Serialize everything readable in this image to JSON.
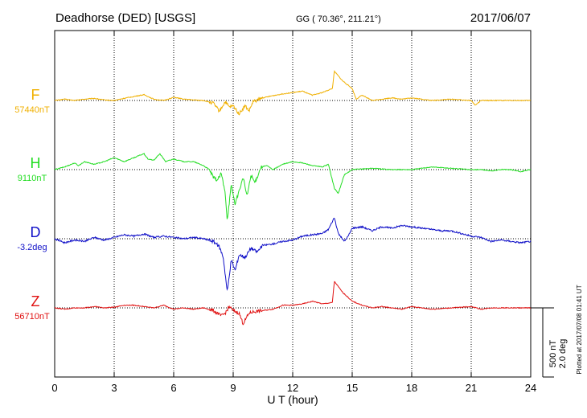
{
  "header": {
    "station": "Deadhorse (DED)  [USGS]",
    "coords": "GG ( 70.36°, 211.21°)",
    "date": "2017/06/07"
  },
  "plotted_note": "Plotted at 2017/07/08 01:41  UT",
  "scale_labels": [
    "500 nT",
    "2.0 deg"
  ],
  "colors": {
    "F": "#f0b000",
    "H": "#22dd22",
    "D": "#1010c8",
    "Z": "#e01010"
  },
  "chart_data": {
    "type": "line",
    "xlabel": "U T (hour)",
    "xlim": [
      0,
      24
    ],
    "xticks": [
      0,
      3,
      6,
      9,
      12,
      15,
      18,
      21,
      24
    ],
    "grid": true,
    "series": [
      {
        "name": "F",
        "baseline_label": "57440nT",
        "points": [
          [
            0,
            0
          ],
          [
            0.5,
            5
          ],
          [
            1,
            0
          ],
          [
            1.5,
            5
          ],
          [
            2,
            8
          ],
          [
            2.5,
            2
          ],
          [
            3,
            0
          ],
          [
            3.5,
            8
          ],
          [
            4,
            15
          ],
          [
            4.5,
            22
          ],
          [
            5,
            5
          ],
          [
            5.5,
            0
          ],
          [
            6,
            12
          ],
          [
            6.5,
            5
          ],
          [
            7,
            2
          ],
          [
            7.5,
            0
          ],
          [
            8,
            -10
          ],
          [
            8.3,
            -40
          ],
          [
            8.6,
            -5
          ],
          [
            8.8,
            -25
          ],
          [
            9,
            -20
          ],
          [
            9.3,
            -50
          ],
          [
            9.6,
            -20
          ],
          [
            9.8,
            -40
          ],
          [
            10,
            -5
          ],
          [
            10.5,
            10
          ],
          [
            11,
            18
          ],
          [
            11.5,
            25
          ],
          [
            12,
            30
          ],
          [
            12.5,
            35
          ],
          [
            12.8,
            25
          ],
          [
            13,
            20
          ],
          [
            13.5,
            30
          ],
          [
            14,
            45
          ],
          [
            14.1,
            110
          ],
          [
            14.5,
            75
          ],
          [
            15,
            45
          ],
          [
            15.2,
            5
          ],
          [
            15.5,
            20
          ],
          [
            16,
            0
          ],
          [
            16.5,
            5
          ],
          [
            17,
            10
          ],
          [
            17.5,
            5
          ],
          [
            18,
            10
          ],
          [
            18.5,
            5
          ],
          [
            19,
            0
          ],
          [
            20,
            5
          ],
          [
            21,
            0
          ],
          [
            21.2,
            -18
          ],
          [
            21.5,
            0
          ],
          [
            22,
            0
          ],
          [
            23,
            0
          ],
          [
            24,
            0
          ]
        ]
      },
      {
        "name": "H",
        "baseline_label": "9110nT",
        "points": [
          [
            0,
            0
          ],
          [
            0.5,
            10
          ],
          [
            1,
            25
          ],
          [
            1.2,
            15
          ],
          [
            1.5,
            30
          ],
          [
            2,
            20
          ],
          [
            2.5,
            30
          ],
          [
            3,
            45
          ],
          [
            3.5,
            30
          ],
          [
            4,
            45
          ],
          [
            4.5,
            60
          ],
          [
            4.7,
            40
          ],
          [
            5,
            35
          ],
          [
            5.3,
            60
          ],
          [
            5.6,
            30
          ],
          [
            6,
            40
          ],
          [
            6.5,
            30
          ],
          [
            7,
            30
          ],
          [
            7.5,
            15
          ],
          [
            7.8,
            0
          ],
          [
            8,
            -30
          ],
          [
            8.2,
            -40
          ],
          [
            8.4,
            -15
          ],
          [
            8.6,
            -90
          ],
          [
            8.7,
            -190
          ],
          [
            8.9,
            -60
          ],
          [
            9.1,
            -130
          ],
          [
            9.3,
            -80
          ],
          [
            9.5,
            -30
          ],
          [
            9.7,
            -100
          ],
          [
            9.9,
            -20
          ],
          [
            10.1,
            -50
          ],
          [
            10.4,
            10
          ],
          [
            10.7,
            15
          ],
          [
            11,
            0
          ],
          [
            11.5,
            20
          ],
          [
            12,
            30
          ],
          [
            12.5,
            25
          ],
          [
            13,
            15
          ],
          [
            13.5,
            10
          ],
          [
            13.8,
            20
          ],
          [
            14.1,
            -70
          ],
          [
            14.3,
            -90
          ],
          [
            14.6,
            -20
          ],
          [
            15,
            0
          ],
          [
            16,
            5
          ],
          [
            17,
            0
          ],
          [
            18,
            0
          ],
          [
            19,
            10
          ],
          [
            20,
            5
          ],
          [
            21,
            0
          ],
          [
            21.5,
            0
          ],
          [
            22,
            -5
          ],
          [
            22.5,
            0
          ],
          [
            23,
            0
          ],
          [
            23.5,
            -8
          ],
          [
            24,
            0
          ]
        ]
      },
      {
        "name": "D",
        "baseline_label": "-3.2deg",
        "points": [
          [
            0,
            0
          ],
          [
            0.5,
            -15
          ],
          [
            1,
            -5
          ],
          [
            1.5,
            -10
          ],
          [
            2,
            5
          ],
          [
            2.5,
            -5
          ],
          [
            3,
            5
          ],
          [
            3.5,
            15
          ],
          [
            4,
            10
          ],
          [
            4.5,
            18
          ],
          [
            5,
            5
          ],
          [
            5.5,
            10
          ],
          [
            6,
            5
          ],
          [
            6.5,
            0
          ],
          [
            7,
            5
          ],
          [
            7.5,
            0
          ],
          [
            8,
            -10
          ],
          [
            8.3,
            -30
          ],
          [
            8.5,
            -70
          ],
          [
            8.7,
            -200
          ],
          [
            8.9,
            -80
          ],
          [
            9.1,
            -120
          ],
          [
            9.3,
            -60
          ],
          [
            9.6,
            -70
          ],
          [
            9.9,
            -35
          ],
          [
            10.2,
            -50
          ],
          [
            10.5,
            -25
          ],
          [
            11,
            -20
          ],
          [
            11.5,
            -10
          ],
          [
            12,
            -5
          ],
          [
            12.5,
            10
          ],
          [
            13,
            15
          ],
          [
            13.5,
            20
          ],
          [
            13.8,
            35
          ],
          [
            14.1,
            80
          ],
          [
            14.3,
            20
          ],
          [
            14.6,
            -10
          ],
          [
            14.8,
            10
          ],
          [
            15,
            40
          ],
          [
            15.5,
            45
          ],
          [
            16,
            30
          ],
          [
            16.5,
            45
          ],
          [
            17,
            40
          ],
          [
            17.5,
            50
          ],
          [
            18,
            45
          ],
          [
            18.5,
            40
          ],
          [
            19,
            35
          ],
          [
            19.5,
            30
          ],
          [
            20,
            30
          ],
          [
            20.5,
            20
          ],
          [
            21,
            10
          ],
          [
            21.5,
            5
          ],
          [
            22,
            -10
          ],
          [
            22.5,
            -5
          ],
          [
            23,
            -10
          ],
          [
            23.5,
            -15
          ],
          [
            24,
            -10
          ]
        ]
      },
      {
        "name": "Z",
        "baseline_label": "56710nT",
        "points": [
          [
            0,
            0
          ],
          [
            0.5,
            -5
          ],
          [
            1,
            0
          ],
          [
            1.5,
            0
          ],
          [
            2,
            5
          ],
          [
            2.5,
            0
          ],
          [
            3,
            3
          ],
          [
            3.5,
            10
          ],
          [
            4,
            10
          ],
          [
            4.5,
            5
          ],
          [
            5,
            0
          ],
          [
            5.5,
            10
          ],
          [
            6,
            -5
          ],
          [
            6.5,
            0
          ],
          [
            7,
            -5
          ],
          [
            7.5,
            0
          ],
          [
            8,
            -10
          ],
          [
            8.4,
            -30
          ],
          [
            8.6,
            -20
          ],
          [
            8.8,
            5
          ],
          [
            9,
            -10
          ],
          [
            9.3,
            -20
          ],
          [
            9.5,
            -60
          ],
          [
            9.8,
            -20
          ],
          [
            10,
            -15
          ],
          [
            10.5,
            -10
          ],
          [
            11,
            -5
          ],
          [
            11.5,
            10
          ],
          [
            12,
            10
          ],
          [
            12.5,
            15
          ],
          [
            13,
            25
          ],
          [
            13.5,
            15
          ],
          [
            14,
            20
          ],
          [
            14.1,
            100
          ],
          [
            14.5,
            60
          ],
          [
            15,
            25
          ],
          [
            15.5,
            10
          ],
          [
            16,
            0
          ],
          [
            16.5,
            5
          ],
          [
            17,
            0
          ],
          [
            17.5,
            -5
          ],
          [
            18,
            5
          ],
          [
            18.5,
            0
          ],
          [
            19,
            -5
          ],
          [
            20,
            0
          ],
          [
            21,
            5
          ],
          [
            21.5,
            -5
          ],
          [
            22,
            0
          ],
          [
            23,
            0
          ],
          [
            24,
            0
          ]
        ]
      }
    ]
  }
}
